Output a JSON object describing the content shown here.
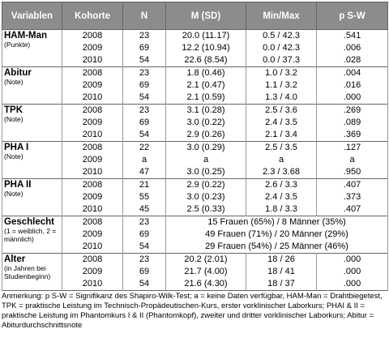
{
  "table": {
    "header": [
      "Variablen",
      "Kohorte",
      "N",
      "M (SD)",
      "Min/Max",
      "p S-W"
    ],
    "groups": [
      {
        "name": "HAM-Man",
        "note": "(Punkte)",
        "rows": [
          [
            "2008",
            "23",
            "20.0 (11.17)",
            "0.5 / 42.3",
            ".541"
          ],
          [
            "2009",
            "69",
            "12.2 (10.94)",
            "0.0 / 42.3",
            ".006"
          ],
          [
            "2010",
            "54",
            "22.6 (8.54)",
            "0.0 / 37.3",
            ".028"
          ]
        ]
      },
      {
        "name": "Abitur",
        "note": "(Note)",
        "rows": [
          [
            "2008",
            "23",
            "1.8 (0.46)",
            "1.0 / 3.2",
            ".004"
          ],
          [
            "2009",
            "69",
            "2.1 (0.47)",
            "1.1 / 3.2",
            ".016"
          ],
          [
            "2010",
            "54",
            "2.1 (0.59)",
            "1.3 / 4.0",
            ".000"
          ]
        ]
      },
      {
        "name": "TPK",
        "note": "(Note)",
        "rows": [
          [
            "2008",
            "23",
            "3.1 (0.28)",
            "2.5 / 3.6",
            ".269"
          ],
          [
            "2009",
            "69",
            "3.0 (0.22)",
            "2.4 / 3.5",
            ".089"
          ],
          [
            "2010",
            "54",
            "2.9 (0.26)",
            "2.1 / 3.4",
            ".369"
          ]
        ]
      },
      {
        "name": "PHA I",
        "note": "(Note)",
        "rows": [
          [
            "2008",
            "22",
            "3.0 (0.29)",
            "2.5 / 3.5",
            ".127"
          ],
          [
            "2009",
            "a",
            "a",
            "a",
            "a"
          ],
          [
            "2010",
            "47",
            "3.0 (0.25)",
            "2.3 / 3.68",
            ".950"
          ]
        ]
      },
      {
        "name": "PHA II",
        "note": "(Note)",
        "rows": [
          [
            "2008",
            "21",
            "2.9 (0.22)",
            "2.6 / 3.3",
            ".407"
          ],
          [
            "2009",
            "55",
            "3.0 (0.23)",
            "2.4 / 3.5",
            ".373"
          ],
          [
            "2010",
            "45",
            "2.5 (0.33)",
            "1.8 / 3.3",
            ".407"
          ]
        ]
      },
      {
        "name": "Geschlecht",
        "note": "(1 = weiblich, 2 = männlich)",
        "rows": [
          [
            "2008",
            "23",
            "15 Frauen (65%) /   8 Männer (35%)"
          ],
          [
            "2009",
            "69",
            "49 Frauen (71%) / 20 Männer (29%)"
          ],
          [
            "2010",
            "54",
            "29 Frauen (54%) / 25 Männer (46%)"
          ]
        ]
      },
      {
        "name": "Alter",
        "note": "(in Jahren bei Studienbeginn)",
        "rows": [
          [
            "2008",
            "23",
            "20.2 (2.01)",
            "18 / 26",
            ".000"
          ],
          [
            "2009",
            "69",
            "21.7 (4.00)",
            "18 / 41",
            ".000"
          ],
          [
            "2010",
            "54",
            "21.6 (4.30)",
            "18 / 37",
            ".000"
          ]
        ]
      }
    ],
    "footnote": "Anmerkung: p S-W = Signifikanz des Shapiro-Wilk-Test; a = keine Daten verfügbar, HAM-Man = Drahtbiegetest, TPK = praktische Leistung im Technisch-Propädeutischen-Kurs, erster vorklinischer Laborkurs; PHAI & II = praktische Leistung im Phantomkurs I & II (Phantomkopf), zweiter und dritter vorklinischer Laborkurs; Abitur = Abiturdurchschnittsnote"
  }
}
